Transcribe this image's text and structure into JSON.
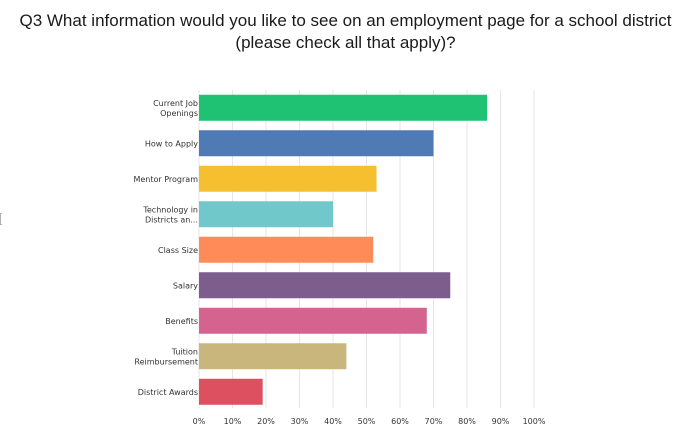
{
  "title": {
    "line1": "Q3 What information would you like to see on an employment page for a school district",
    "line2": "(please check all that apply)?"
  },
  "chart_data": {
    "type": "bar",
    "orientation": "horizontal",
    "categories": [
      [
        "Current Job",
        "Openings"
      ],
      [
        "How to Apply"
      ],
      [
        "Mentor Program"
      ],
      [
        "Technology in",
        "Districts an..."
      ],
      [
        "Class Size"
      ],
      [
        "Salary"
      ],
      [
        "Benefits"
      ],
      [
        "Tuition",
        "Reimbursement"
      ],
      [
        "District Awards"
      ]
    ],
    "values": [
      86,
      70,
      53,
      40,
      52,
      75,
      68,
      44,
      19
    ],
    "colors": [
      "#1fc272",
      "#4f7ab3",
      "#f5bf2f",
      "#70c8cb",
      "#ff8c58",
      "#7c5d8e",
      "#d4648f",
      "#c8b67c",
      "#dc5060"
    ],
    "xlim": [
      0,
      100
    ],
    "xticks": [
      0,
      10,
      20,
      30,
      40,
      50,
      60,
      70,
      80,
      90,
      100
    ],
    "tick_labels": [
      "0%",
      "10%",
      "20%",
      "30%",
      "40%",
      "50%",
      "60%",
      "70%",
      "80%",
      "90%",
      "100%"
    ],
    "grid": true,
    "grid_color": "#e6e6e6"
  }
}
